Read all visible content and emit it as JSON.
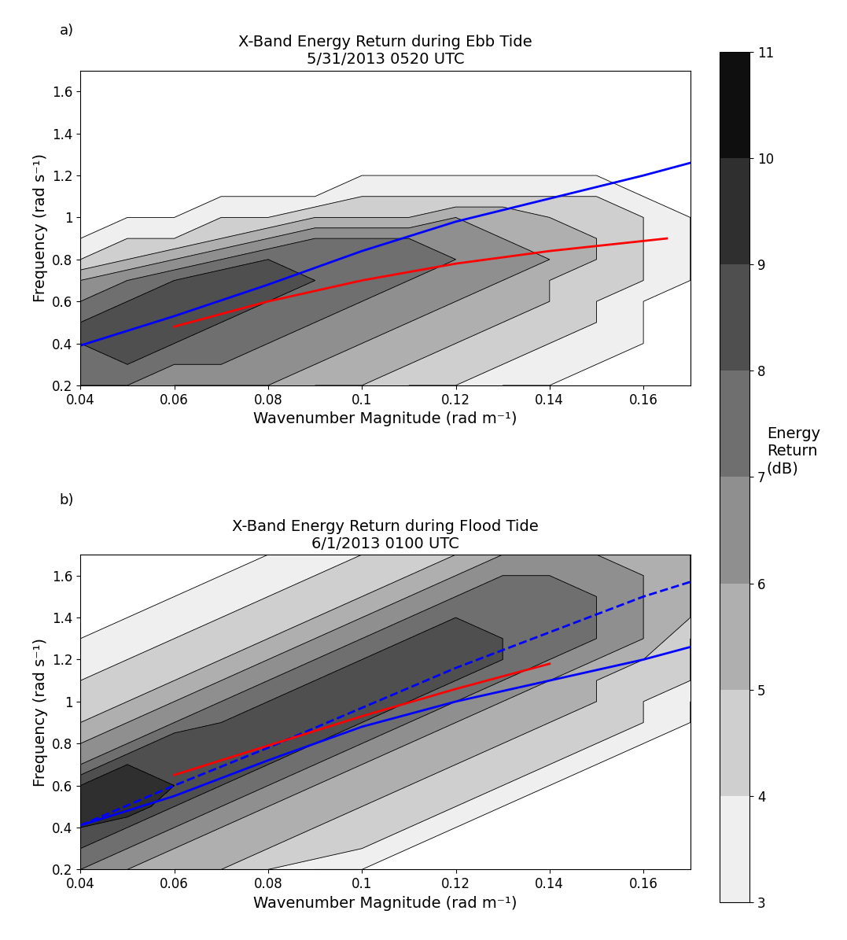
{
  "chart_data": [
    {
      "type": "contour",
      "panel": "a)",
      "title": "X-Band Energy Return during Ebb Tide\n5/31/2013 0520 UTC",
      "x_label": "Wavenumber Magnitude (rad m⁻¹)",
      "y_label": "Frequency (rad s⁻¹)",
      "xlim": [
        0.04,
        0.17
      ],
      "ylim": [
        0.2,
        1.7
      ],
      "xticks": [
        0.04,
        0.06,
        0.08,
        0.1,
        0.12,
        0.14,
        0.16
      ],
      "yticks": [
        0.2,
        0.4,
        0.6,
        0.8,
        1,
        1.2,
        1.4,
        1.6
      ],
      "energy": {
        "x": [
          0.04,
          0.05,
          0.06,
          0.07,
          0.08,
          0.09,
          0.1,
          0.11,
          0.12,
          0.13,
          0.14,
          0.15,
          0.16,
          0.17
        ],
        "y": [
          0.2,
          0.3,
          0.4,
          0.5,
          0.6,
          0.7,
          0.8,
          0.9,
          1.0,
          1.1,
          1.2,
          1.3,
          1.4,
          1.5,
          1.6,
          1.7
        ],
        "values": [
          [
            7,
            7,
            6,
            6,
            6,
            5,
            5,
            4,
            4,
            3,
            3,
            2,
            2,
            2
          ],
          [
            8,
            8,
            7,
            7,
            7,
            6,
            6,
            5,
            5,
            4,
            4,
            3,
            3,
            2
          ],
          [
            8,
            9,
            8,
            8,
            7,
            7,
            6,
            6,
            5,
            5,
            4,
            4,
            3,
            2
          ],
          [
            8,
            9,
            9,
            8,
            8,
            7,
            7,
            6,
            6,
            5,
            5,
            4,
            3,
            2
          ],
          [
            7,
            8,
            9,
            9,
            8,
            8,
            7,
            7,
            6,
            6,
            5,
            4,
            3,
            2
          ],
          [
            6,
            7,
            8,
            9,
            9,
            8,
            8,
            7,
            7,
            6,
            5,
            5,
            4,
            3
          ],
          [
            4,
            5,
            6,
            7,
            8,
            8,
            8,
            8,
            7,
            7,
            6,
            5,
            4,
            3
          ],
          [
            3,
            4,
            4,
            5,
            6,
            7,
            7,
            7,
            7,
            6,
            6,
            5,
            4,
            3
          ],
          [
            2,
            3,
            3,
            4,
            4,
            5,
            5,
            5,
            6,
            6,
            5,
            5,
            4,
            3
          ],
          [
            2,
            2,
            2,
            3,
            3,
            3,
            4,
            4,
            4,
            4,
            4,
            4,
            3,
            2
          ],
          [
            2,
            2,
            2,
            2,
            2,
            3,
            3,
            3,
            3,
            3,
            3,
            3,
            3,
            2
          ],
          [
            2,
            2,
            2,
            2,
            2,
            2,
            2,
            2,
            2,
            2,
            2,
            2,
            2,
            2
          ],
          [
            2,
            2,
            2,
            2,
            2,
            2,
            2,
            2,
            2,
            2,
            2,
            2,
            2,
            2
          ],
          [
            2,
            2,
            2,
            2,
            2,
            2,
            2,
            2,
            2,
            2,
            2,
            2,
            2,
            2
          ],
          [
            2,
            2,
            2,
            2,
            2,
            2,
            2,
            2,
            2,
            2,
            2,
            2,
            2,
            2
          ],
          [
            2,
            2,
            2,
            2,
            2,
            2,
            2,
            2,
            2,
            2,
            2,
            2,
            2,
            2
          ]
        ]
      },
      "series": [
        {
          "color": "#0000ff",
          "line_style": "solid",
          "x": [
            0.04,
            0.06,
            0.08,
            0.1,
            0.12,
            0.14,
            0.16,
            0.17
          ],
          "values": [
            0.39,
            0.53,
            0.68,
            0.84,
            0.98,
            1.09,
            1.2,
            1.26
          ]
        },
        {
          "color": "#ff0000",
          "line_style": "solid",
          "x": [
            0.06,
            0.08,
            0.1,
            0.12,
            0.14,
            0.165
          ],
          "values": [
            0.48,
            0.6,
            0.7,
            0.78,
            0.84,
            0.9
          ]
        }
      ]
    },
    {
      "type": "contour",
      "panel": "b)",
      "title": "X-Band Energy Return during Flood Tide\n6/1/2013 0100 UTC",
      "x_label": "Wavenumber Magnitude (rad m⁻¹)",
      "y_label": "Frequency (rad s⁻¹)",
      "xlim": [
        0.04,
        0.17
      ],
      "ylim": [
        0.2,
        1.7
      ],
      "xticks": [
        0.04,
        0.06,
        0.08,
        0.1,
        0.12,
        0.14,
        0.16
      ],
      "yticks": [
        0.2,
        0.4,
        0.6,
        0.8,
        1,
        1.2,
        1.4,
        1.6
      ],
      "energy": {
        "x": [
          0.04,
          0.05,
          0.06,
          0.07,
          0.08,
          0.09,
          0.1,
          0.11,
          0.12,
          0.13,
          0.14,
          0.15,
          0.16,
          0.17
        ],
        "y": [
          0.2,
          0.3,
          0.4,
          0.5,
          0.6,
          0.7,
          0.8,
          0.9,
          1.0,
          1.1,
          1.2,
          1.3,
          1.4,
          1.5,
          1.6,
          1.7
        ],
        "values": [
          [
            7,
            6,
            5,
            5,
            4,
            3,
            3,
            2,
            2,
            2,
            2,
            2,
            2,
            2
          ],
          [
            8,
            7,
            6,
            6,
            5,
            5,
            4,
            3,
            3,
            2,
            2,
            2,
            2,
            2
          ],
          [
            9,
            8,
            7,
            6,
            6,
            5,
            5,
            4,
            3,
            3,
            2,
            2,
            2,
            2
          ],
          [
            10,
            10,
            8,
            7,
            6,
            6,
            5,
            5,
            4,
            3,
            3,
            2,
            2,
            2
          ],
          [
            9,
            10,
            9,
            8,
            7,
            6,
            6,
            5,
            5,
            4,
            3,
            3,
            2,
            2
          ],
          [
            7,
            9,
            9,
            9,
            8,
            7,
            6,
            6,
            5,
            5,
            4,
            3,
            3,
            2
          ],
          [
            6,
            7,
            9,
            9,
            9,
            8,
            7,
            6,
            6,
            5,
            5,
            4,
            3,
            3
          ],
          [
            5,
            6,
            7,
            8,
            9,
            9,
            8,
            7,
            6,
            6,
            5,
            5,
            4,
            3
          ],
          [
            5,
            5,
            6,
            7,
            8,
            9,
            9,
            8,
            7,
            6,
            6,
            5,
            4,
            3
          ],
          [
            4,
            5,
            5,
            6,
            7,
            8,
            9,
            9,
            8,
            7,
            6,
            5,
            5,
            4
          ],
          [
            4,
            4,
            5,
            5,
            6,
            7,
            8,
            9,
            9,
            8,
            7,
            6,
            5,
            4
          ],
          [
            3,
            4,
            4,
            5,
            5,
            6,
            7,
            8,
            9,
            8,
            8,
            7,
            6,
            4
          ],
          [
            3,
            3,
            4,
            4,
            5,
            5,
            6,
            7,
            8,
            8,
            8,
            7,
            6,
            5
          ],
          [
            3,
            3,
            3,
            4,
            4,
            5,
            5,
            6,
            7,
            8,
            8,
            7,
            6,
            5
          ],
          [
            3,
            3,
            3,
            3,
            4,
            4,
            5,
            5,
            6,
            7,
            7,
            7,
            6,
            5
          ],
          [
            2,
            3,
            3,
            3,
            3,
            4,
            4,
            5,
            5,
            6,
            6,
            6,
            6,
            5
          ]
        ]
      },
      "series": [
        {
          "color": "#0000ff",
          "line_style": "solid",
          "x": [
            0.04,
            0.06,
            0.08,
            0.1,
            0.12,
            0.14,
            0.16,
            0.17
          ],
          "values": [
            0.41,
            0.55,
            0.72,
            0.88,
            1.0,
            1.1,
            1.2,
            1.26
          ]
        },
        {
          "color": "#0000ff",
          "line_style": "dashed",
          "x": [
            0.04,
            0.06,
            0.08,
            0.1,
            0.12,
            0.14,
            0.16,
            0.17
          ],
          "values": [
            0.41,
            0.6,
            0.78,
            0.97,
            1.16,
            1.33,
            1.5,
            1.57
          ]
        },
        {
          "color": "#ff0000",
          "line_style": "solid",
          "x": [
            0.06,
            0.08,
            0.1,
            0.12,
            0.14
          ],
          "values": [
            0.65,
            0.79,
            0.93,
            1.06,
            1.18
          ]
        }
      ]
    }
  ],
  "colorbar": {
    "label": "Energy Return (dB)",
    "range": [
      3,
      11
    ],
    "ticks": [
      3,
      4,
      5,
      6,
      7,
      8,
      9,
      10,
      11
    ]
  }
}
